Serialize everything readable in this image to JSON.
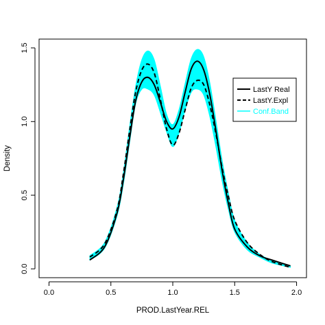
{
  "chart_data": {
    "type": "line",
    "title": "",
    "xlabel": "PROD.LastYear.REL",
    "ylabel": "Density",
    "xlim": [
      -0.08,
      2.08
    ],
    "ylim": [
      -0.06,
      1.56
    ],
    "x_ticks": [
      0.0,
      0.5,
      1.0,
      1.5,
      2.0
    ],
    "x_tick_labels": [
      "0.0",
      "0.5",
      "1.0",
      "1.5",
      "2.0"
    ],
    "y_ticks": [
      0.0,
      0.5,
      1.0,
      1.5
    ],
    "y_tick_labels": [
      "0.0",
      "0.5",
      "1.0",
      "1.5"
    ],
    "grid": false,
    "legend_position": "top-right",
    "colors": {
      "real": "#000000",
      "expl": "#000000",
      "band": "#00FFFF",
      "legend_band_text": "#00FFFF"
    },
    "x": [
      0.33,
      0.45,
      0.55,
      0.6,
      0.65,
      0.7,
      0.75,
      0.8,
      0.85,
      0.9,
      0.95,
      1.0,
      1.05,
      1.1,
      1.15,
      1.2,
      1.25,
      1.3,
      1.35,
      1.4,
      1.45,
      1.5,
      1.6,
      1.7,
      1.8,
      1.95
    ],
    "series": [
      {
        "name": "LastY Real",
        "style": "solid",
        "y": [
          0.06,
          0.15,
          0.38,
          0.6,
          0.88,
          1.14,
          1.27,
          1.3,
          1.25,
          1.13,
          1.0,
          0.95,
          1.03,
          1.2,
          1.36,
          1.41,
          1.35,
          1.18,
          0.93,
          0.66,
          0.44,
          0.27,
          0.15,
          0.09,
          0.06,
          0.02
        ]
      },
      {
        "name": "LastY.Expl",
        "style": "dashed",
        "y": [
          0.08,
          0.17,
          0.4,
          0.64,
          0.93,
          1.2,
          1.35,
          1.39,
          1.33,
          1.15,
          0.95,
          0.84,
          0.92,
          1.08,
          1.23,
          1.28,
          1.25,
          1.11,
          0.91,
          0.68,
          0.49,
          0.33,
          0.18,
          0.1,
          0.05,
          0.01
        ]
      },
      {
        "name": "Conf.Band",
        "style": "band",
        "lower": [
          0.06,
          0.14,
          0.36,
          0.57,
          0.85,
          1.12,
          1.22,
          1.22,
          1.18,
          1.06,
          0.93,
          0.83,
          0.92,
          1.08,
          1.2,
          1.22,
          1.18,
          1.03,
          0.82,
          0.59,
          0.4,
          0.25,
          0.13,
          0.08,
          0.04,
          0.01
        ],
        "upper": [
          0.09,
          0.18,
          0.42,
          0.65,
          0.96,
          1.24,
          1.42,
          1.48,
          1.42,
          1.24,
          1.05,
          0.98,
          1.08,
          1.26,
          1.43,
          1.49,
          1.44,
          1.26,
          1.0,
          0.73,
          0.51,
          0.33,
          0.18,
          0.1,
          0.06,
          0.02
        ]
      }
    ]
  },
  "legend": {
    "items": [
      {
        "label": "LastY Real"
      },
      {
        "label": "LastY.Expl"
      },
      {
        "label": "Conf.Band"
      }
    ]
  }
}
